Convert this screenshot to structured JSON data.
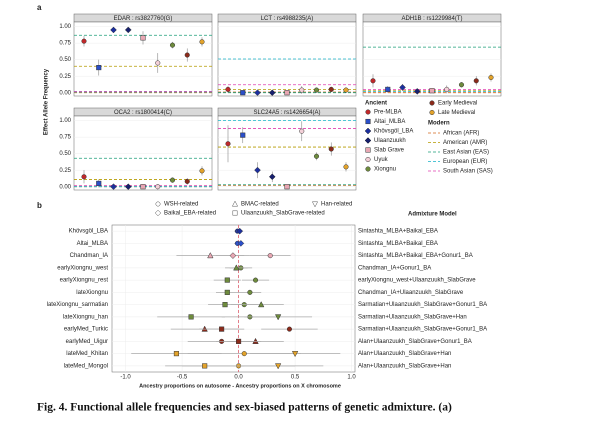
{
  "panel_labels": [
    "a",
    "b"
  ],
  "caption": "Fig. 4. Functional allele frequencies and sex-biased patterns of genetic admixture. (a)",
  "chart_data": [
    {
      "type": "facet-points",
      "ylabel": "Effect Allele Frequency",
      "ylim": [
        -0.05,
        1.07
      ],
      "yticks": [
        {
          "value": 0,
          "label": "0.00"
        },
        {
          "value": 0.25,
          "label": "0.25"
        },
        {
          "value": 0.5,
          "label": "0.50"
        },
        {
          "value": 0.75,
          "label": "0.75"
        },
        {
          "value": 1,
          "label": "1.00"
        }
      ],
      "groups_title": "Ancient",
      "groups": [
        {
          "name": "Pre-MLBA",
          "color": "#c0282a",
          "shape": "circle"
        },
        {
          "name": "Altai_MLBA",
          "color": "#2b4fc9",
          "shape": "square"
        },
        {
          "name": "Khövsgöl_LBA",
          "color": "#1c2f9e",
          "shape": "diamond"
        },
        {
          "name": "Ulaanzuukh",
          "color": "#17206e",
          "shape": "diamond"
        },
        {
          "name": "Slab Grave",
          "color": "#e8a7b3",
          "shape": "square"
        },
        {
          "name": "Uyuk",
          "color": "#f4d0d8",
          "shape": "circle"
        },
        {
          "name": "Xiongnu",
          "color": "#6e8b3d",
          "shape": "circle"
        },
        {
          "name": "Early Medieval",
          "color": "#8b2a1a",
          "shape": "circle"
        },
        {
          "name": "Late Medieval",
          "color": "#e3a32b",
          "shape": "circle"
        }
      ],
      "reference_title": "Modern",
      "references": [
        {
          "name": "African (AFR)",
          "color": "#d2691e"
        },
        {
          "name": "American (AMR)",
          "color": "#b59b00"
        },
        {
          "name": "East Asian (EAS)",
          "color": "#1b9e77"
        },
        {
          "name": "European (EUR)",
          "color": "#17b3c7"
        },
        {
          "name": "South Asian (SAS)",
          "color": "#e040b0"
        }
      ],
      "facets": [
        {
          "title": "EDAR : rs3827760(G)",
          "values": [
            0.78,
            0.38,
            0.95,
            0.95,
            0.83,
            0.45,
            0.72,
            0.57,
            0.77
          ],
          "errors": [
            0.08,
            0.12,
            0.04,
            0.03,
            0.1,
            0.15,
            0.05,
            0.1,
            0.07
          ],
          "reference": [
            0.0,
            0.4,
            0.87,
            0.01,
            0.02
          ]
        },
        {
          "title": "LCT : rs4988235(A)",
          "values": [
            0.05,
            0.0,
            0.0,
            0.0,
            0.0,
            0.04,
            0.04,
            0.05,
            0.04
          ],
          "errors": [
            0.05,
            0.02,
            0.02,
            0.01,
            0.02,
            0.06,
            0.03,
            0.04,
            0.03
          ],
          "reference": [
            0.01,
            0.05,
            0.0,
            0.51,
            0.12
          ]
        },
        {
          "title": "ADH1B : rs1229984(T)",
          "values": [
            0.18,
            0.05,
            0.08,
            0.02,
            0.03,
            0.05,
            0.12,
            0.18,
            0.23
          ],
          "errors": [
            0.1,
            0.05,
            0.05,
            0.02,
            0.03,
            0.06,
            0.04,
            0.07,
            0.06
          ],
          "reference": [
            0.0,
            0.03,
            0.69,
            0.02,
            0.05
          ]
        },
        {
          "title": "OCA2 : rs1800414(C)",
          "values": [
            0.15,
            0.05,
            0.0,
            0.0,
            0.0,
            0.0,
            0.1,
            0.08,
            0.24
          ],
          "errors": [
            0.1,
            0.06,
            0.02,
            0.01,
            0.02,
            0.04,
            0.04,
            0.05,
            0.07
          ],
          "reference": [
            0.0,
            0.11,
            0.43,
            0.0,
            0.02
          ]
        },
        {
          "title": "SLC24A5 : rs1426654(A)",
          "values": [
            0.65,
            0.78,
            0.25,
            0.15,
            0.0,
            0.84,
            0.46,
            0.57,
            0.3
          ],
          "errors": [
            0.28,
            0.12,
            0.12,
            0.08,
            0.03,
            0.15,
            0.06,
            0.1,
            0.07
          ],
          "reference": [
            0.02,
            0.6,
            0.03,
            1.0,
            0.88
          ]
        }
      ]
    },
    {
      "type": "forest",
      "xlabel": "Ancestry proportions on autosome - Ancestry proportions on X chromosome",
      "xlim": [
        -1.12,
        1.03
      ],
      "xticks": [
        {
          "value": -1,
          "label": "-1.0"
        },
        -0.5,
        {
          "value": 0,
          "label": "0.0"
        },
        0.5,
        {
          "value": 1,
          "label": "1.0"
        }
      ],
      "categories": [
        "Khövsgöl_LBA",
        "Altai_MLBA",
        "Chandman_IA",
        "earlyXiongnu_west",
        "earlyXiongnu_rest",
        "lateXiongnu",
        "lateXiongnu_sarmatian",
        "lateXiongnu_han",
        "earlyMed_Turkic",
        "earlyMed_Uigur",
        "lateMed_Khitan",
        "lateMed_Mongol"
      ],
      "models_title": "Admixture Model",
      "models": [
        "Sintashta_MLBA+Baikal_EBA",
        "Sintashta_MLBA+Baikal_EBA",
        "Sintashta_MLBA+Baikal_EBA+Gonur1_BA",
        "Chandman_IA+Gonur1_BA",
        "earlyXiongnu_west+Ulaanzuukh_SlabGrave",
        "Chandman_IA+Ulaanzuukh_SlabGrave",
        "Sarmatian+Ulaanzuukh_SlabGrave+Gonur1_BA",
        "Sarmatian+Ulaanzuukh_SlabGrave+Han",
        "Sarmatian+Ulaanzuukh_SlabGrave+Gonur1_BA",
        "Alan+Ulaanzuukh_SlabGrave+Gonur1_BA",
        "Alan+Ulaanzuukh_SlabGrave+Han",
        "Alan+Ulaanzuukh_SlabGrave+Han"
      ],
      "row_colors": [
        "#1c2f9e",
        "#2b4fc9",
        "#e8a7b3",
        "#6e8b3d",
        "#6e8b3d",
        "#6e8b3d",
        "#6e8b3d",
        "#6e8b3d",
        "#8b2a1a",
        "#8b2a1a",
        "#e3a32b",
        "#e3a32b"
      ],
      "series": [
        {
          "name": "WSH-related",
          "shape": "circle",
          "values": [
            -0.01,
            -0.01,
            0.28,
            0.02,
            0.15,
            0.1,
            0.05,
            0.1,
            0.45,
            -0.15,
            0.05,
            0.0
          ],
          "errors": [
            0.03,
            0.03,
            0.18,
            0.1,
            0.12,
            0.1,
            0.12,
            0.25,
            0.25,
            0.3,
            0.5,
            0.5
          ]
        },
        {
          "name": "BMAC-related",
          "shape": "triangle-up",
          "values": [
            null,
            null,
            -0.25,
            -0.02,
            null,
            null,
            0.2,
            null,
            -0.3,
            0.15,
            null,
            null
          ],
          "errors": [
            null,
            null,
            0.3,
            0.1,
            null,
            null,
            0.2,
            null,
            0.3,
            0.25,
            null,
            null
          ]
        },
        {
          "name": "Han-related",
          "shape": "triangle-down",
          "values": [
            null,
            null,
            null,
            null,
            null,
            null,
            null,
            0.35,
            null,
            null,
            0.5,
            0.35
          ],
          "errors": [
            null,
            null,
            null,
            null,
            null,
            null,
            null,
            0.3,
            null,
            null,
            0.4,
            0.4
          ]
        },
        {
          "name": "Baikal_EBA-related",
          "shape": "diamond",
          "values": [
            0.01,
            0.02,
            -0.05,
            null,
            null,
            null,
            null,
            null,
            null,
            null,
            null,
            null
          ],
          "errors": [
            0.03,
            0.03,
            0.15,
            null,
            null,
            null,
            null,
            null,
            null,
            null,
            null,
            null
          ]
        },
        {
          "name": "Ulaanzuukh_SlabGrave-related",
          "shape": "square",
          "values": [
            null,
            null,
            null,
            null,
            -0.1,
            -0.1,
            -0.12,
            -0.42,
            -0.15,
            0.0,
            -0.55,
            -0.3
          ],
          "errors": [
            null,
            null,
            null,
            null,
            0.12,
            0.1,
            0.15,
            0.3,
            0.2,
            0.2,
            0.4,
            0.35
          ]
        }
      ]
    }
  ]
}
